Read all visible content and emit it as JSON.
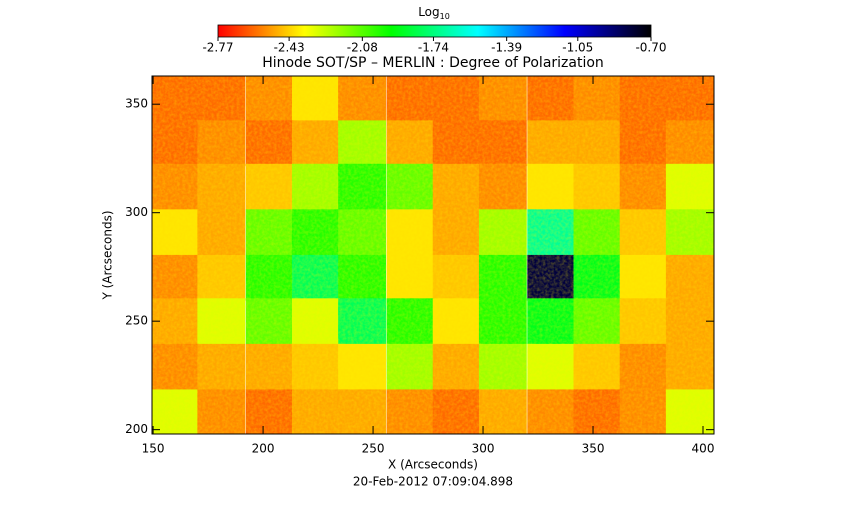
{
  "chart_data": {
    "type": "heatmap",
    "title": "Hinode SOT/SP – MERLIN : Degree of Polarization",
    "x_label": "X (Arcseconds)",
    "y_label": "Y (Arcseconds)",
    "date": "20-Feb-2012 07:09:04.898",
    "colorbar_title": "Log",
    "colorbar_title_sub": "10",
    "colormap": [
      "#ff0000",
      "#ffff00",
      "#00ff00",
      "#00ffff",
      "#0000ff",
      "#000000"
    ],
    "zlim": [
      -2.77,
      -0.7
    ],
    "zticks": [
      -2.77,
      -2.43,
      -2.08,
      -1.74,
      -1.39,
      -1.05,
      {
        "value": -0.7,
        "label": "-0.70"
      }
    ],
    "xlim": [
      149.5,
      405
    ],
    "ylim": [
      198,
      363
    ],
    "xticks": [
      150,
      200,
      250,
      300,
      350,
      400
    ],
    "yticks": [
      200,
      250,
      300,
      350
    ],
    "x": [
      160,
      181,
      203,
      224,
      245,
      267,
      288,
      309,
      331,
      352,
      373,
      394
    ],
    "y": [
      353,
      332,
      312,
      291,
      270,
      250,
      229,
      208
    ],
    "z": [
      [
        -2.6,
        -2.6,
        -2.55,
        -2.4,
        -2.55,
        -2.6,
        -2.6,
        -2.55,
        -2.6,
        -2.55,
        -2.6,
        -2.6
      ],
      [
        -2.6,
        -2.55,
        -2.6,
        -2.5,
        -2.2,
        -2.5,
        -2.6,
        -2.6,
        -2.5,
        -2.5,
        -2.6,
        -2.55
      ],
      [
        -2.55,
        -2.5,
        -2.45,
        -2.2,
        -2.0,
        -2.1,
        -2.5,
        -2.55,
        -2.4,
        -2.45,
        -2.55,
        -2.3
      ],
      [
        -2.4,
        -2.5,
        -2.1,
        -2.0,
        -2.1,
        -2.4,
        -2.5,
        -2.2,
        -1.7,
        -2.1,
        -2.45,
        -2.2
      ],
      [
        -2.55,
        -2.45,
        -2.0,
        -1.8,
        -2.0,
        -2.4,
        -2.45,
        -2.0,
        -0.8,
        -1.9,
        -2.4,
        -2.5
      ],
      [
        -2.5,
        -2.3,
        -2.1,
        -2.3,
        -1.8,
        -2.0,
        -2.4,
        -2.0,
        -1.9,
        -2.1,
        -2.45,
        -2.5
      ],
      [
        -2.55,
        -2.5,
        -2.5,
        -2.45,
        -2.4,
        -2.2,
        -2.5,
        -2.2,
        -2.3,
        -2.45,
        -2.55,
        -2.5
      ],
      [
        -2.3,
        -2.55,
        -2.6,
        -2.5,
        -2.5,
        -2.55,
        -2.6,
        -2.5,
        -2.55,
        -2.6,
        -2.55,
        -2.3
      ]
    ]
  }
}
